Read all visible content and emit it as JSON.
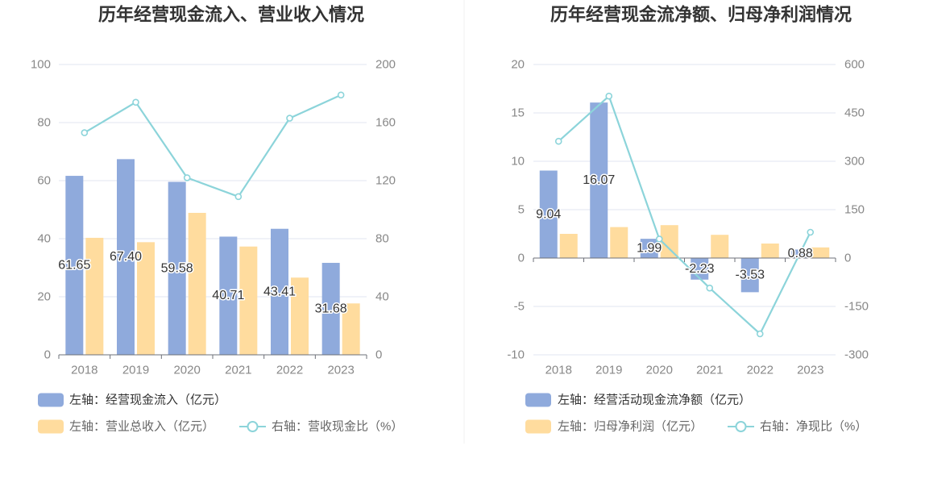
{
  "chart_data": [
    {
      "type": "bar",
      "title": "历年经营现金流入、营业收入情况",
      "categories": [
        "2018",
        "2019",
        "2020",
        "2021",
        "2022",
        "2023"
      ],
      "y_left": {
        "lim": [
          0,
          100
        ],
        "ticks": [
          0,
          20,
          40,
          60,
          80,
          100
        ]
      },
      "y_right": {
        "lim": [
          0,
          200
        ],
        "ticks": [
          0,
          40,
          80,
          120,
          160,
          200
        ]
      },
      "grid": true,
      "legend": "bottom",
      "series": [
        {
          "name": "左轴：经营现金流入（亿元）",
          "type": "bar",
          "axis": "left",
          "color": "#8FAADC",
          "values": [
            61.65,
            67.4,
            59.58,
            40.71,
            43.41,
            31.68
          ]
        },
        {
          "name": "左轴：营业总收入（亿元）",
          "type": "bar",
          "axis": "left",
          "color": "#FFDC9E",
          "values": [
            40.3,
            38.8,
            48.9,
            37.3,
            26.6,
            17.7
          ]
        },
        {
          "name": "右轴：营收现金比（%）",
          "type": "line",
          "axis": "right",
          "color": "#8CD4DA",
          "values": [
            153,
            174,
            122,
            109,
            163,
            179
          ]
        }
      ]
    },
    {
      "type": "bar",
      "title": "历年经营现金流净额、归母净利润情况",
      "categories": [
        "2018",
        "2019",
        "2020",
        "2021",
        "2022",
        "2023"
      ],
      "y_left": {
        "lim": [
          -10,
          20
        ],
        "ticks": [
          -10,
          -5,
          0,
          5,
          10,
          15,
          20
        ]
      },
      "y_right": {
        "lim": [
          -300,
          600
        ],
        "ticks": [
          -300,
          -150,
          0,
          150,
          300,
          450,
          600
        ]
      },
      "grid": true,
      "legend": "bottom",
      "series": [
        {
          "name": "左轴：经营活动现金流净额（亿元）",
          "type": "bar",
          "axis": "left",
          "color": "#8FAADC",
          "values": [
            9.04,
            16.07,
            1.99,
            -2.23,
            -3.53,
            0.88
          ]
        },
        {
          "name": "左轴：归母净利润（亿元）",
          "type": "bar",
          "axis": "left",
          "color": "#FFDC9E",
          "values": [
            2.5,
            3.2,
            3.4,
            2.4,
            1.5,
            1.1
          ]
        },
        {
          "name": "右轴：净现比（%）",
          "type": "line",
          "axis": "right",
          "color": "#8CD4DA",
          "values": [
            362,
            502,
            59,
            -93,
            -235,
            80
          ]
        }
      ]
    }
  ]
}
